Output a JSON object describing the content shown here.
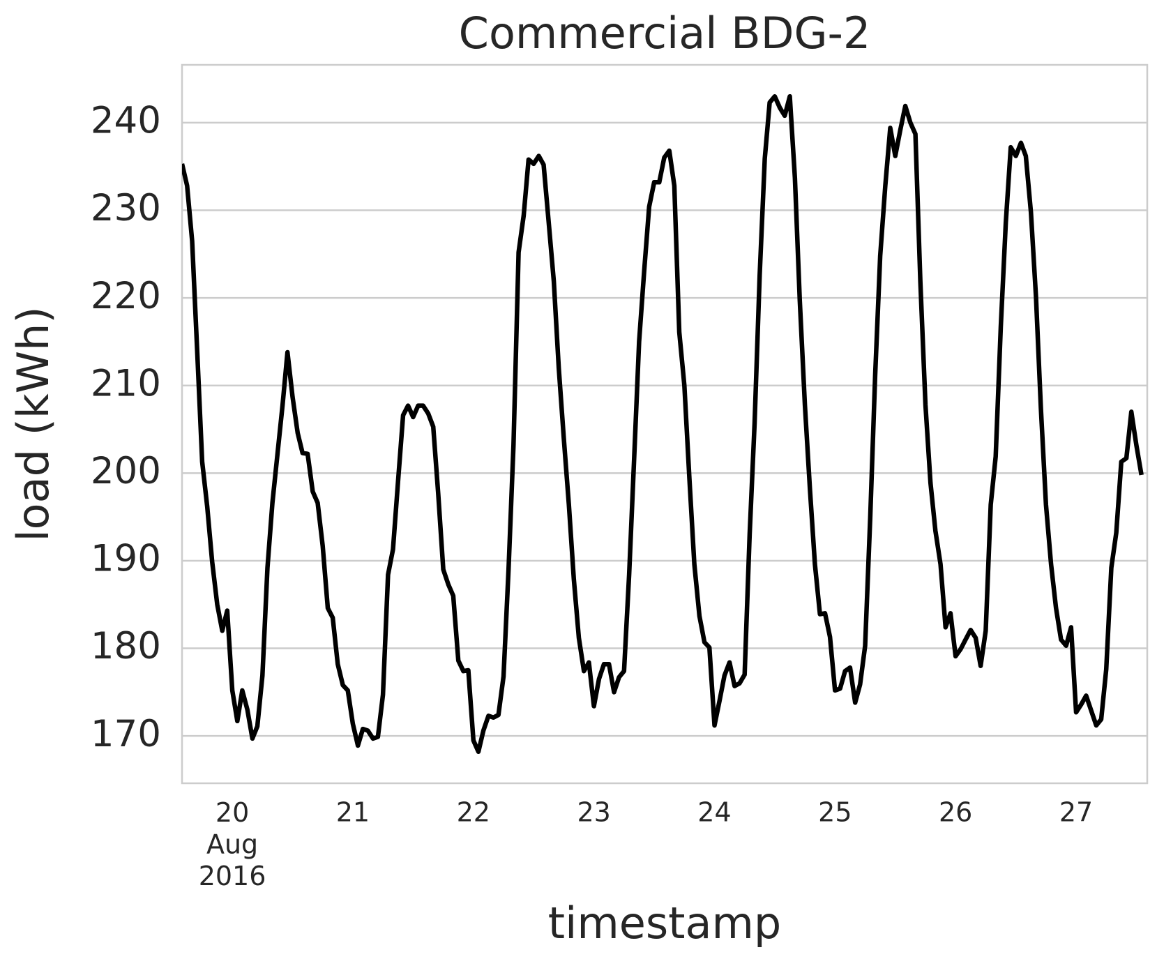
{
  "chart_data": {
    "type": "line",
    "title": "Commercial BDG-2",
    "x_label": "timestamp",
    "y_label": "load (kWh)",
    "x": [
      19.583,
      19.625,
      19.667,
      19.708,
      19.75,
      19.792,
      19.833,
      19.875,
      19.917,
      19.958,
      20,
      20.042,
      20.083,
      20.125,
      20.167,
      20.208,
      20.25,
      20.292,
      20.333,
      20.375,
      20.417,
      20.458,
      20.5,
      20.542,
      20.583,
      20.625,
      20.667,
      20.708,
      20.75,
      20.792,
      20.833,
      20.875,
      20.917,
      20.958,
      21,
      21.042,
      21.083,
      21.125,
      21.167,
      21.208,
      21.25,
      21.292,
      21.333,
      21.375,
      21.417,
      21.458,
      21.5,
      21.542,
      21.583,
      21.625,
      21.667,
      21.708,
      21.75,
      21.792,
      21.833,
      21.875,
      21.917,
      21.958,
      22,
      22.042,
      22.083,
      22.125,
      22.167,
      22.208,
      22.25,
      22.292,
      22.333,
      22.375,
      22.417,
      22.458,
      22.5,
      22.542,
      22.583,
      22.625,
      22.667,
      22.708,
      22.75,
      22.792,
      22.833,
      22.875,
      22.917,
      22.958,
      23,
      23.042,
      23.083,
      23.125,
      23.167,
      23.208,
      23.25,
      23.292,
      23.333,
      23.375,
      23.417,
      23.458,
      23.5,
      23.542,
      23.583,
      23.625,
      23.667,
      23.708,
      23.75,
      23.792,
      23.833,
      23.875,
      23.917,
      23.958,
      24,
      24.042,
      24.083,
      24.125,
      24.167,
      24.208,
      24.25,
      24.292,
      24.333,
      24.375,
      24.417,
      24.458,
      24.5,
      24.542,
      24.583,
      24.625,
      24.667,
      24.708,
      24.75,
      24.792,
      24.833,
      24.875,
      24.917,
      24.958,
      25,
      25.042,
      25.083,
      25.125,
      25.167,
      25.208,
      25.25,
      25.292,
      25.333,
      25.375,
      25.417,
      25.458,
      25.5,
      25.542,
      25.583,
      25.625,
      25.667,
      25.708,
      25.75,
      25.792,
      25.833,
      25.875,
      25.917,
      25.958,
      26,
      26.042,
      26.083,
      26.125,
      26.167,
      26.208,
      26.25,
      26.292,
      26.333,
      26.375,
      26.417,
      26.458,
      26.5,
      26.542,
      26.583,
      26.625,
      26.667,
      26.708,
      26.75,
      26.792,
      26.833,
      26.875,
      26.917,
      26.958,
      27,
      27.042,
      27.083,
      27.125,
      27.167,
      27.208,
      27.25,
      27.292,
      27.333,
      27.375,
      27.417,
      27.458,
      27.5,
      27.542
    ],
    "series": [
      {
        "name": "load",
        "color": "#000000",
        "values": [
          235.3,
          232.8,
          226.5,
          214.2,
          201.3,
          196.2,
          189.9,
          185.0,
          182.0,
          184.3,
          175.2,
          171.7,
          175.2,
          173.0,
          169.7,
          171.1,
          176.9,
          189.2,
          196.6,
          202.2,
          207.8,
          213.8,
          208.7,
          204.6,
          202.3,
          202.2,
          197.9,
          196.6,
          191.7,
          184.6,
          183.5,
          178.2,
          175.8,
          175.2,
          171.4,
          168.9,
          170.8,
          170.6,
          169.7,
          169.9,
          174.7,
          188.4,
          191.3,
          199.0,
          206.6,
          207.7,
          206.4,
          207.7,
          207.7,
          206.8,
          205.3,
          197.7,
          189.0,
          187.3,
          186.0,
          178.6,
          177.4,
          177.5,
          169.5,
          168.2,
          170.6,
          172.3,
          172.1,
          172.4,
          176.8,
          189.0,
          203.2,
          225.2,
          229.4,
          235.8,
          235.3,
          236.2,
          235.2,
          228.6,
          221.9,
          212.0,
          204.0,
          196.4,
          187.9,
          181.2,
          177.4,
          178.4,
          173.4,
          176.5,
          178.2,
          178.2,
          175.0,
          176.7,
          177.4,
          188.4,
          201.5,
          215.0,
          223.1,
          230.4,
          233.2,
          233.2,
          236.0,
          236.8,
          232.8,
          216.1,
          210.0,
          199.4,
          189.6,
          183.7,
          180.7,
          180.1,
          171.2,
          174.0,
          176.9,
          178.4,
          175.7,
          176.0,
          177.0,
          193.0,
          205.7,
          222.6,
          235.9,
          242.3,
          243.0,
          241.7,
          240.8,
          243.0,
          233.7,
          219.7,
          207.8,
          198.1,
          189.6,
          183.9,
          184.0,
          181.3,
          175.2,
          175.4,
          177.4,
          177.8,
          173.8,
          175.9,
          180.3,
          194.9,
          211.2,
          224.8,
          232.8,
          239.4,
          236.2,
          239.2,
          241.9,
          240.0,
          238.7,
          221.8,
          207.8,
          198.9,
          193.4,
          189.6,
          182.4,
          184.0,
          179.1,
          179.9,
          181.0,
          182.1,
          181.2,
          178.0,
          182.0,
          196.4,
          201.9,
          216.7,
          228.6,
          237.2,
          236.2,
          237.7,
          236.2,
          229.8,
          220.1,
          207.4,
          196.4,
          189.6,
          184.6,
          181.0,
          180.3,
          182.4,
          172.7,
          173.6,
          174.6,
          172.9,
          171.2,
          171.9,
          177.6,
          189.2,
          193.2,
          201.3,
          201.7,
          207.0,
          203.2,
          199.8
        ]
      }
    ],
    "xlim": [
      19.583,
      27.59
    ],
    "xticks": [
      {
        "value": 20,
        "label": "20\nAug\n2016"
      },
      21,
      22,
      23,
      24,
      25,
      26,
      27
    ],
    "ylim": [
      164.6,
      246.6
    ],
    "yticks": [
      170,
      180,
      190,
      200,
      210,
      220,
      230,
      240
    ],
    "grid": true
  }
}
